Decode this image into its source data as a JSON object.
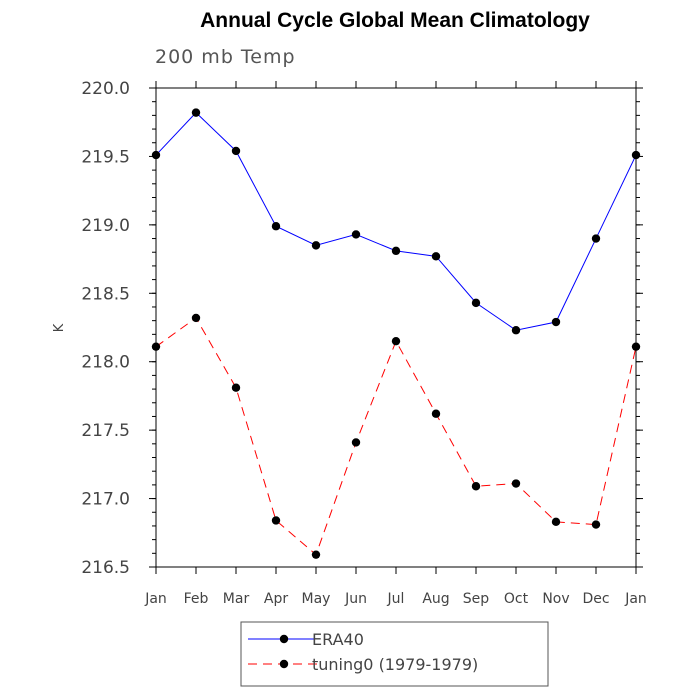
{
  "chart_data": {
    "type": "line",
    "title": "Annual Cycle Global Mean Climatology",
    "subtitle": "200 mb Temp",
    "xlabel": "",
    "ylabel": "K",
    "categories": [
      "Jan",
      "Feb",
      "Mar",
      "Apr",
      "May",
      "Jun",
      "Jul",
      "Aug",
      "Sep",
      "Oct",
      "Nov",
      "Dec",
      "Jan"
    ],
    "ylim": [
      216.5,
      220.0
    ],
    "yticks": [
      "216.5",
      "217.0",
      "217.5",
      "218.0",
      "218.5",
      "219.0",
      "219.5",
      "220.0"
    ],
    "legend_position": "bottom-center",
    "series": [
      {
        "name": "ERA40",
        "color": "#0000ff",
        "line_style": "solid",
        "values": [
          219.51,
          219.82,
          219.54,
          218.99,
          218.85,
          218.93,
          218.81,
          218.77,
          218.43,
          218.23,
          218.29,
          218.9,
          219.51
        ]
      },
      {
        "name": "tuning0 (1979-1979)",
        "color": "#ff0000",
        "line_style": "dashed",
        "values": [
          218.11,
          218.32,
          217.81,
          216.84,
          216.59,
          217.41,
          218.15,
          217.62,
          217.09,
          217.11,
          216.83,
          216.81,
          218.11
        ]
      }
    ]
  }
}
